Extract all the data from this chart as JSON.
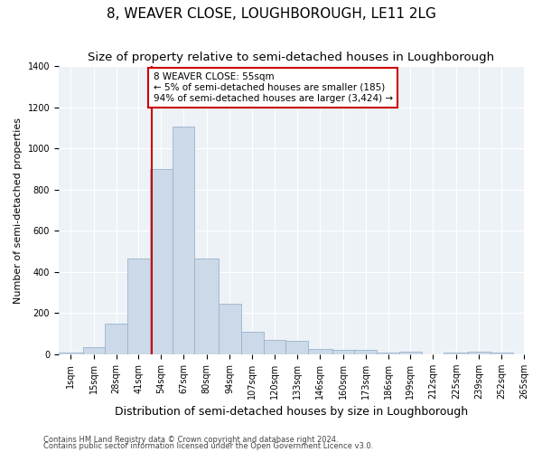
{
  "title": "8, WEAVER CLOSE, LOUGHBOROUGH, LE11 2LG",
  "subtitle": "Size of property relative to semi-detached houses in Loughborough",
  "xlabel": "Distribution of semi-detached houses by size in Loughborough",
  "ylabel": "Number of semi-detached properties",
  "bar_color": "#ccd9e8",
  "bar_edge_color": "#99b3cc",
  "annotation_box_color": "#cc0000",
  "vline_color": "#cc0000",
  "vline_x": 55,
  "annotation_text": "8 WEAVER CLOSE: 55sqm\n← 5% of semi-detached houses are smaller (185)\n94% of semi-detached houses are larger (3,424) →",
  "footnote1": "Contains HM Land Registry data © Crown copyright and database right 2024.",
  "footnote2": "Contains public sector information licensed under the Open Government Licence v3.0.",
  "bins": [
    1,
    15,
    28,
    41,
    54,
    67,
    80,
    94,
    107,
    120,
    133,
    146,
    160,
    173,
    186,
    199,
    212,
    225,
    239,
    252,
    265
  ],
  "counts": [
    10,
    35,
    150,
    465,
    900,
    1105,
    465,
    245,
    108,
    70,
    65,
    25,
    20,
    20,
    10,
    15,
    0,
    10,
    15,
    10
  ],
  "ylim": [
    0,
    1400
  ],
  "yticks": [
    0,
    200,
    400,
    600,
    800,
    1000,
    1200,
    1400
  ],
  "background_color": "#edf2f7",
  "grid_color": "#ffffff",
  "title_fontsize": 11,
  "subtitle_fontsize": 9.5,
  "xlabel_fontsize": 9,
  "ylabel_fontsize": 8,
  "tick_fontsize": 7,
  "annotation_fontsize": 7.5
}
